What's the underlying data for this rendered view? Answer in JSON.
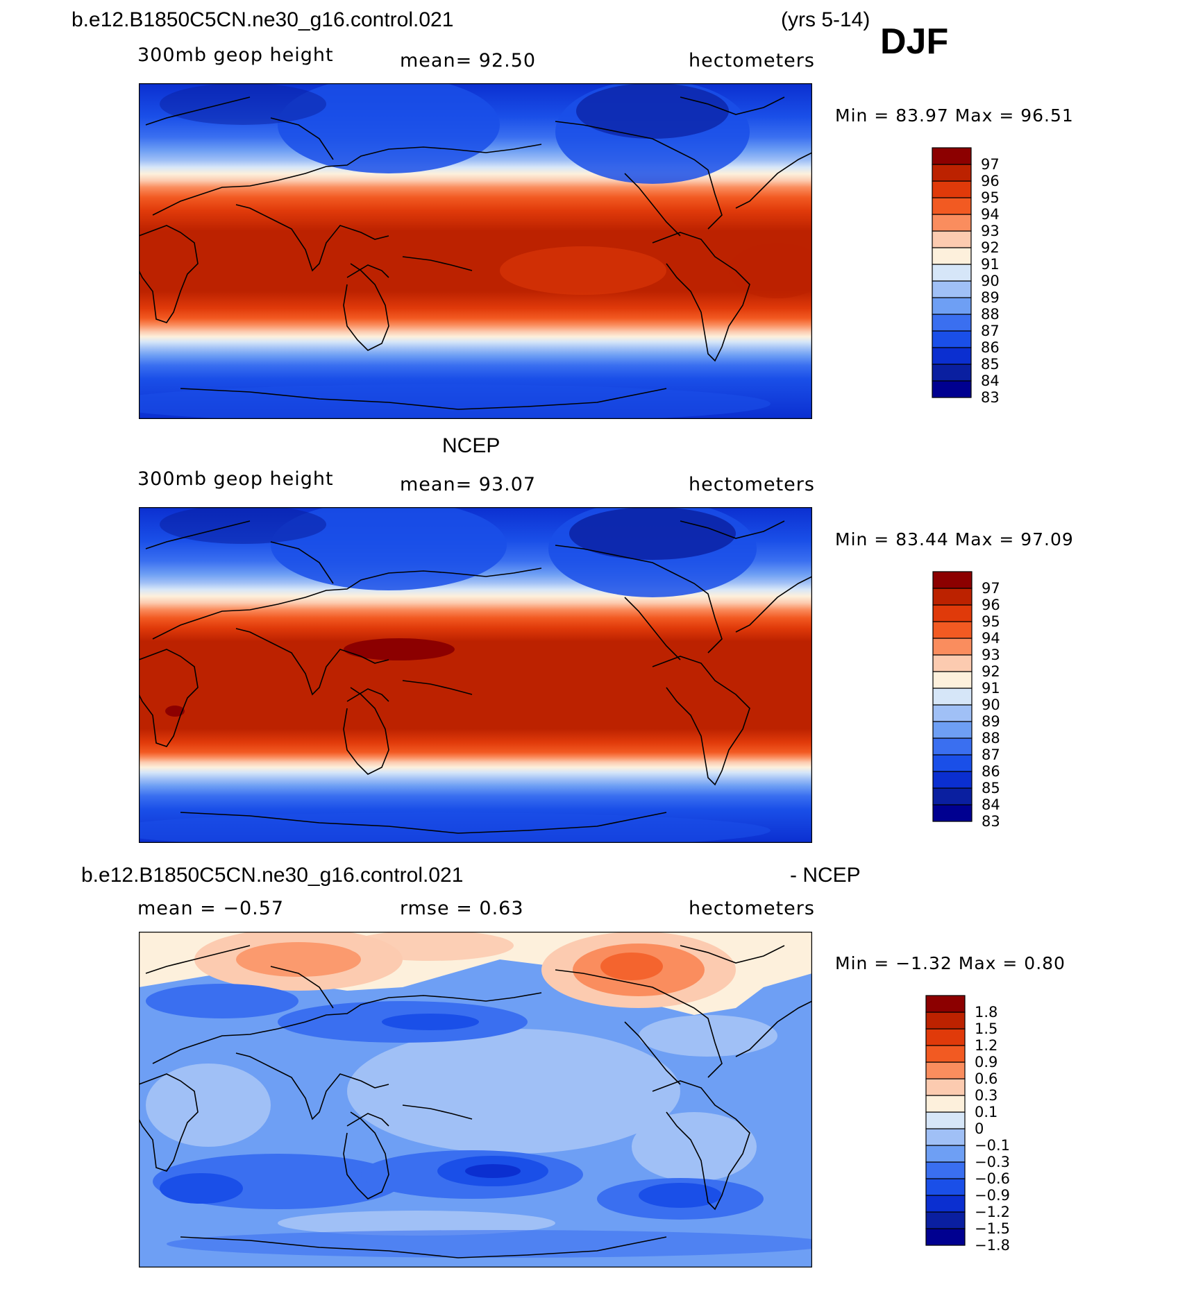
{
  "header": {
    "case_name": "b.e12.B1850C5CN.ne30_g16.control.021",
    "years": "(yrs 5-14)",
    "season": "DJF"
  },
  "palette": {
    "heights": [
      "#000090",
      "#0a1fa0",
      "#0b2fd0",
      "#1a4fe8",
      "#3a6ff0",
      "#6e9ff4",
      "#a0c0f6",
      "#d6e6f8",
      "#fdf0dc",
      "#fccbb0",
      "#fa8d5e",
      "#f25a22",
      "#e03a0a",
      "#bc2200",
      "#8c0000"
    ],
    "diff": [
      "#000090",
      "#0a1fa0",
      "#0b2fd0",
      "#1a4fe8",
      "#3a6ff0",
      "#6e9ff4",
      "#a0c0f6",
      "#d6e6f8",
      "#fdf0dc",
      "#fccbb0",
      "#fa8d5e",
      "#f25a22",
      "#e03a0a",
      "#bc2200",
      "#8c0000"
    ]
  },
  "panels": [
    {
      "id": "model",
      "variable": "300mb  geop  height",
      "stat": "mean=   92.50",
      "units": "hectometers",
      "minmax": "Min  =    83.97  Max  =    96.51",
      "colorbar_labels": [
        "97",
        "96",
        "95",
        "94",
        "93",
        "92",
        "91",
        "90",
        "89",
        "88",
        "87",
        "86",
        "85",
        "84",
        "83"
      ]
    },
    {
      "id": "ncep",
      "title": "NCEP",
      "variable": "300mb  geop  height",
      "stat": "mean=   93.07",
      "units": "hectometers",
      "minmax": "Min  =    83.44  Max  =    97.09",
      "colorbar_labels": [
        "97",
        "96",
        "95",
        "94",
        "93",
        "92",
        "91",
        "90",
        "89",
        "88",
        "87",
        "86",
        "85",
        "84",
        "83"
      ]
    },
    {
      "id": "diff",
      "title_left": "b.e12.B1850C5CN.ne30_g16.control.021",
      "title_right": "- NCEP",
      "stat_left": "mean  =    −0.57",
      "stat_mid": "rmse  =     0.63",
      "units": "hectometers",
      "minmax": "Min  =   −1.32  Max  =     0.80",
      "colorbar_labels": [
        "1.8",
        "1.5",
        "1.2",
        "0.9",
        "0.6",
        "0.3",
        "0.1",
        "0",
        "−0.1",
        "−0.3",
        "−0.6",
        "−0.9",
        "−1.2",
        "−1.5",
        "−1.8"
      ]
    }
  ]
}
